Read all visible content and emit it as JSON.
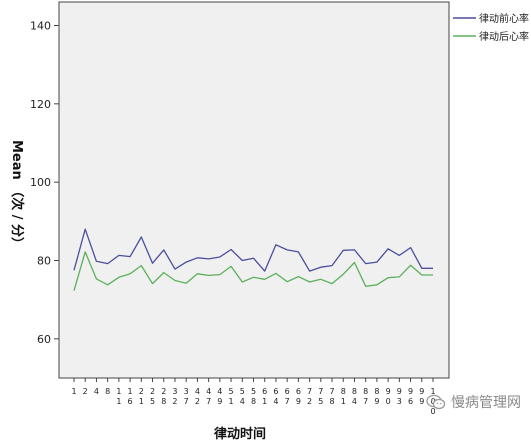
{
  "chart_data": {
    "type": "line",
    "title": "",
    "xlabel": "律动时间",
    "ylabel": "Mean （次 / 分）",
    "ylim": [
      50,
      146
    ],
    "yticks": [
      60,
      80,
      100,
      120,
      140
    ],
    "grid": false,
    "legend_position": "top-right",
    "categories": [
      "1",
      "2",
      "4",
      "8",
      "11",
      "16",
      "21",
      "25",
      "28",
      "32",
      "37",
      "42",
      "47",
      "49",
      "51",
      "54",
      "58",
      "61",
      "64",
      "67",
      "69",
      "72",
      "75",
      "78",
      "81",
      "84",
      "87",
      "89",
      "90",
      "93",
      "96",
      "99",
      "100"
    ],
    "series": [
      {
        "name": "律动前心率",
        "color": "#4a4f9e",
        "values": [
          77.5,
          88.0,
          79.8,
          79.2,
          81.3,
          81.0,
          86.0,
          79.3,
          82.7,
          77.8,
          79.6,
          80.7,
          80.4,
          80.9,
          82.8,
          80.0,
          80.6,
          77.3,
          84.0,
          82.7,
          82.2,
          77.3,
          78.3,
          78.7,
          82.6,
          82.7,
          79.2,
          79.6,
          83.0,
          81.3,
          83.3,
          78.0,
          78.0
        ]
      },
      {
        "name": "律动后心率",
        "color": "#5cb05c",
        "values": [
          72.3,
          82.2,
          75.3,
          73.8,
          75.7,
          76.6,
          78.7,
          74.1,
          76.9,
          74.9,
          74.2,
          76.6,
          76.2,
          76.4,
          78.5,
          74.5,
          75.7,
          75.2,
          76.7,
          74.6,
          75.9,
          74.5,
          75.2,
          74.1,
          76.5,
          79.5,
          73.4,
          73.8,
          75.6,
          75.8,
          78.8,
          76.3,
          76.3
        ]
      }
    ]
  },
  "watermark": {
    "text": "慢病管理网"
  }
}
